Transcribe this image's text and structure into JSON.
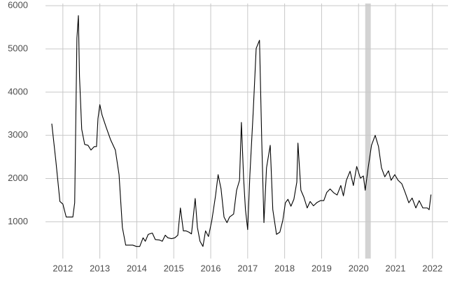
{
  "chart_data": {
    "type": "line",
    "x": [
      2011.7,
      2011.81,
      2011.92,
      2012.0,
      2012.09,
      2012.19,
      2012.27,
      2012.32,
      2012.38,
      2012.42,
      2012.45,
      2012.51,
      2012.59,
      2012.68,
      2012.76,
      2012.85,
      2012.91,
      2012.95,
      2013.0,
      2013.06,
      2013.17,
      2013.29,
      2013.42,
      2013.52,
      2013.61,
      2013.7,
      2013.8,
      2013.89,
      2013.99,
      2014.08,
      2014.17,
      2014.23,
      2014.31,
      2014.42,
      2014.5,
      2014.61,
      2014.69,
      2014.77,
      2014.84,
      2014.94,
      2015.03,
      2015.11,
      2015.18,
      2015.26,
      2015.33,
      2015.41,
      2015.48,
      2015.58,
      2015.64,
      2015.71,
      2015.79,
      2015.86,
      2015.94,
      2016.03,
      2016.13,
      2016.2,
      2016.28,
      2016.36,
      2016.44,
      2016.51,
      2016.62,
      2016.7,
      2016.78,
      2016.83,
      2016.89,
      2016.94,
      2017.0,
      2017.06,
      2017.15,
      2017.23,
      2017.32,
      2017.38,
      2017.44,
      2017.51,
      2017.61,
      2017.68,
      2017.78,
      2017.87,
      2017.95,
      2018.02,
      2018.09,
      2018.17,
      2018.25,
      2018.33,
      2018.36,
      2018.44,
      2018.52,
      2018.61,
      2018.69,
      2018.78,
      2018.88,
      2018.97,
      2019.06,
      2019.14,
      2019.23,
      2019.33,
      2019.42,
      2019.52,
      2019.59,
      2019.67,
      2019.77,
      2019.86,
      2019.95,
      2020.05,
      2020.13,
      2020.18,
      2020.26,
      2020.35,
      2020.45,
      2020.54,
      2020.62,
      2020.71,
      2020.81,
      2020.88,
      2020.98,
      2021.07,
      2021.17,
      2021.26,
      2021.36,
      2021.45,
      2021.55,
      2021.64,
      2021.74,
      2021.86,
      2021.91,
      2021.96
    ],
    "values": [
      3270,
      2410,
      1470,
      1410,
      1110,
      1110,
      1110,
      1440,
      5250,
      5770,
      4360,
      3140,
      2790,
      2770,
      2660,
      2740,
      2740,
      3390,
      3710,
      3470,
      3190,
      2900,
      2660,
      2090,
      870,
      460,
      460,
      460,
      430,
      430,
      630,
      550,
      710,
      740,
      590,
      580,
      550,
      690,
      630,
      610,
      630,
      690,
      1320,
      790,
      790,
      760,
      720,
      1540,
      870,
      550,
      430,
      790,
      660,
      1030,
      1600,
      2090,
      1760,
      1110,
      980,
      1110,
      1180,
      1730,
      1960,
      3300,
      2010,
      1280,
      820,
      2090,
      3550,
      5010,
      5200,
      2900,
      980,
      2250,
      2770,
      1280,
      710,
      760,
      1030,
      1440,
      1520,
      1360,
      1520,
      1920,
      2820,
      1730,
      1570,
      1320,
      1470,
      1370,
      1450,
      1490,
      1490,
      1680,
      1760,
      1670,
      1620,
      1840,
      1600,
      1960,
      2170,
      1840,
      2280,
      2010,
      2060,
      1730,
      2250,
      2770,
      3000,
      2740,
      2250,
      2040,
      2180,
      1960,
      2090,
      1960,
      1880,
      1680,
      1440,
      1550,
      1320,
      1490,
      1320,
      1320,
      1280,
      1630
    ],
    "color": "#000000",
    "shaded_regions": [
      [
        2020.18,
        2020.33
      ]
    ],
    "shade_color": "#d3d3d3",
    "xlim": [
      2011.53,
      2022.42
    ],
    "xticks": [
      2012,
      2013,
      2014,
      2015,
      2016,
      2017,
      2018,
      2019,
      2020,
      2021,
      2022
    ],
    "ylim": [
      150,
      6050
    ],
    "yticks": [
      1000,
      2000,
      3000,
      4000,
      5000,
      6000
    ],
    "grid": true
  }
}
